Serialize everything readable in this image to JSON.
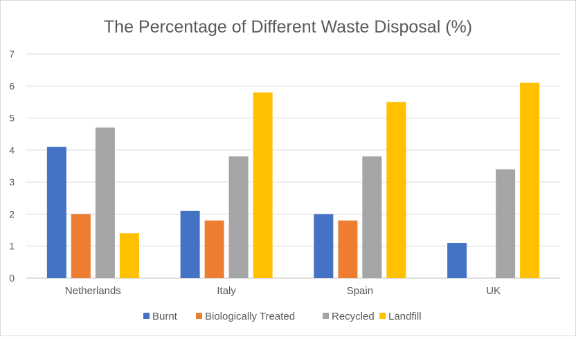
{
  "chart_data": {
    "type": "bar",
    "title": "The Percentage of Different Waste Disposal (%)",
    "xlabel": "",
    "ylabel": "",
    "categories": [
      "Netherlands",
      "Italy",
      "Spain",
      "UK"
    ],
    "series": [
      {
        "name": "Burnt",
        "color": "#4472c4",
        "values": [
          4.1,
          2.1,
          2.0,
          1.1
        ]
      },
      {
        "name": "Biologically Treated",
        "color": "#ed7d31",
        "values": [
          2.0,
          1.8,
          1.8,
          0
        ]
      },
      {
        "name": "Recycled",
        "color": "#a5a5a5",
        "values": [
          4.7,
          3.8,
          3.8,
          3.4
        ]
      },
      {
        "name": "Landfill",
        "color": "#ffc000",
        "values": [
          1.4,
          5.8,
          5.5,
          6.1
        ]
      }
    ],
    "ylim": [
      0,
      7
    ],
    "yticks": [
      "0",
      "1",
      "2",
      "3",
      "4",
      "5",
      "6",
      "7"
    ],
    "grid": true,
    "legend_position": "bottom"
  }
}
